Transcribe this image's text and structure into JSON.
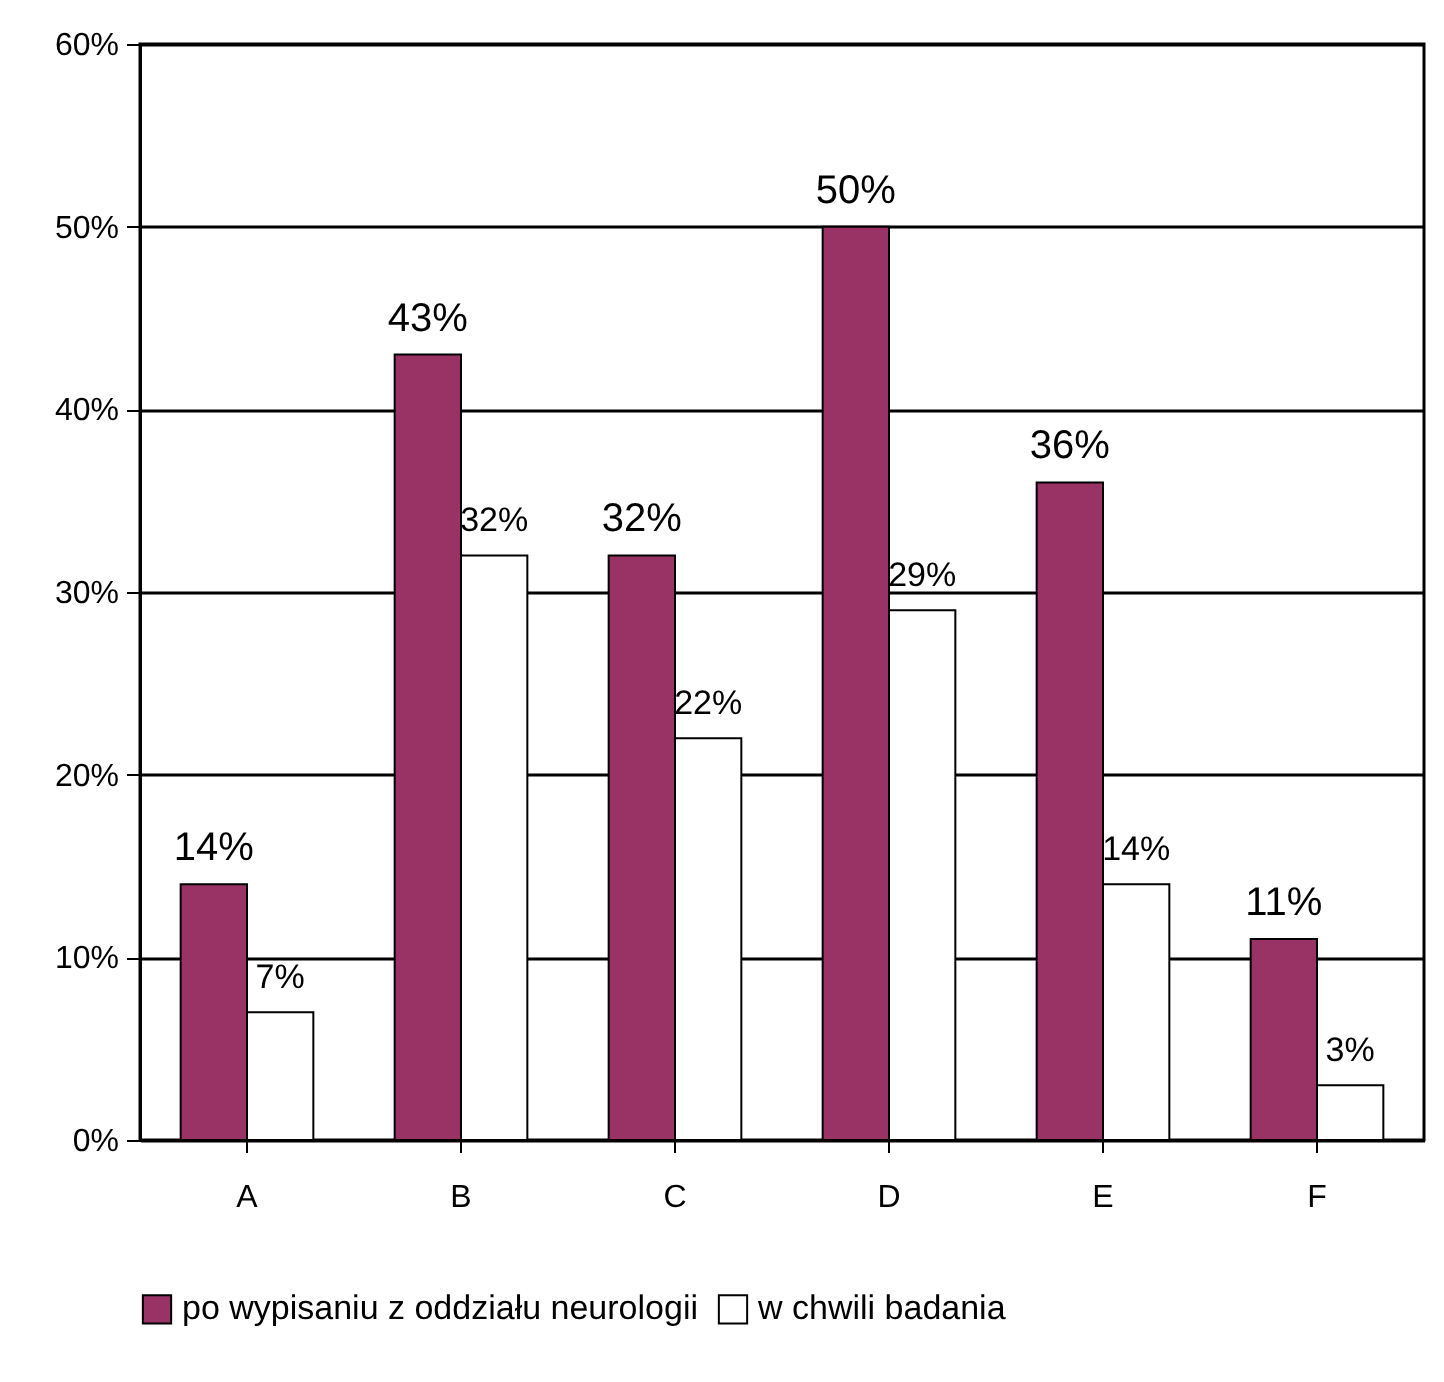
{
  "chart_data": {
    "type": "bar",
    "categories": [
      "A",
      "B",
      "C",
      "D",
      "E",
      "F"
    ],
    "series": [
      {
        "name": "po wypisaniu z oddziału neurologii",
        "color": "#993366",
        "values": [
          14,
          43,
          32,
          50,
          36,
          11
        ],
        "value_labels": [
          "14%",
          "43%",
          "32%",
          "50%",
          "36%",
          "11%"
        ]
      },
      {
        "name": "w chwili badania",
        "color": "#ffffff",
        "values": [
          7,
          32,
          22,
          29,
          14,
          3
        ],
        "value_labels": [
          "7%",
          "32%",
          "22%",
          "29%",
          "14%",
          "3%"
        ]
      }
    ],
    "ylim": [
      0,
      60
    ],
    "yticks": [
      {
        "value": 0,
        "label": "0%"
      },
      {
        "value": 10,
        "label": "10%"
      },
      {
        "value": 20,
        "label": "20%"
      },
      {
        "value": 30,
        "label": "30%"
      },
      {
        "value": 40,
        "label": "40%"
      },
      {
        "value": 50,
        "label": "50%"
      },
      {
        "value": 60,
        "label": "60%"
      }
    ],
    "grid": "y",
    "legend": "bottom"
  }
}
